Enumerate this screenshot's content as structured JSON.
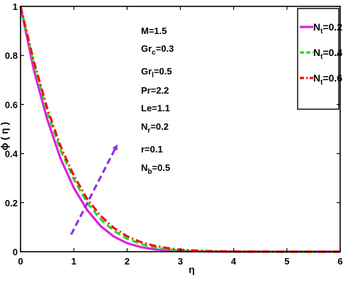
{
  "chart_data": {
    "type": "line",
    "xlabel": "η",
    "ylabel": "ϕ ( η )",
    "xlim": [
      0,
      6
    ],
    "ylim": [
      0,
      1
    ],
    "xticks": [
      "0",
      "1",
      "2",
      "3",
      "4",
      "5",
      "6"
    ],
    "yticks": [
      "0",
      "0.2",
      "0.4",
      "0.6",
      "0.8",
      "1"
    ],
    "grid": false,
    "legend_position": "top-right",
    "series": [
      {
        "name_main": "N",
        "name_sub": "t",
        "name_rest": "=0.2",
        "color": "#e020e0",
        "dash": "solid",
        "x": [
          0,
          0.25,
          0.5,
          0.75,
          1.0,
          1.25,
          1.5,
          1.75,
          2.0,
          2.25,
          2.5,
          2.75,
          3.0,
          3.5,
          4.0,
          5.0,
          6.0
        ],
        "y": [
          1.0,
          0.74,
          0.54,
          0.38,
          0.26,
          0.17,
          0.105,
          0.062,
          0.035,
          0.019,
          0.01,
          0.005,
          0.003,
          0.001,
          0.0,
          0.0,
          0.0
        ]
      },
      {
        "name_main": "N",
        "name_sub": "t",
        "name_rest": "=0.4",
        "color": "#22dd22",
        "dash": "dashed",
        "x": [
          0,
          0.25,
          0.5,
          0.75,
          1.0,
          1.25,
          1.5,
          1.75,
          2.0,
          2.25,
          2.5,
          2.75,
          3.0,
          3.5,
          4.0,
          5.0,
          6.0
        ],
        "y": [
          1.0,
          0.765,
          0.57,
          0.415,
          0.295,
          0.2,
          0.133,
          0.085,
          0.053,
          0.032,
          0.018,
          0.01,
          0.005,
          0.002,
          0.0005,
          0.0,
          0.0
        ]
      },
      {
        "name_main": "N",
        "name_sub": "t",
        "name_rest": "=0.6",
        "color": "#ee1111",
        "dash": "dashdot",
        "x": [
          0,
          0.25,
          0.5,
          0.75,
          1.0,
          1.25,
          1.5,
          1.75,
          2.0,
          2.25,
          2.5,
          2.75,
          3.0,
          3.5,
          4.0,
          5.0,
          6.0
        ],
        "y": [
          1.0,
          0.775,
          0.585,
          0.43,
          0.31,
          0.215,
          0.147,
          0.097,
          0.063,
          0.04,
          0.025,
          0.015,
          0.008,
          0.003,
          0.001,
          0.0,
          0.0
        ]
      }
    ],
    "annotations": [
      {
        "main": "M=1.5",
        "sub": "",
        "rest": ""
      },
      {
        "main": "Gr",
        "sub": "c",
        "rest": "=0.3"
      },
      {
        "main": "Gr",
        "sub": "l",
        "rest": "=0.5"
      },
      {
        "main": "Pr=2.2",
        "sub": "",
        "rest": ""
      },
      {
        "main": "Le=1.1",
        "sub": "",
        "rest": ""
      },
      {
        "main": "N",
        "sub": "r",
        "rest": "=0.2"
      },
      {
        "main": "r=0.1",
        "sub": "",
        "rest": ""
      },
      {
        "main": "N",
        "sub": "b",
        "rest": "=0.5"
      }
    ],
    "arrow": {
      "color": "#8a2be2",
      "from": [
        0.95,
        0.07
      ],
      "to": [
        1.8,
        0.43
      ]
    }
  }
}
